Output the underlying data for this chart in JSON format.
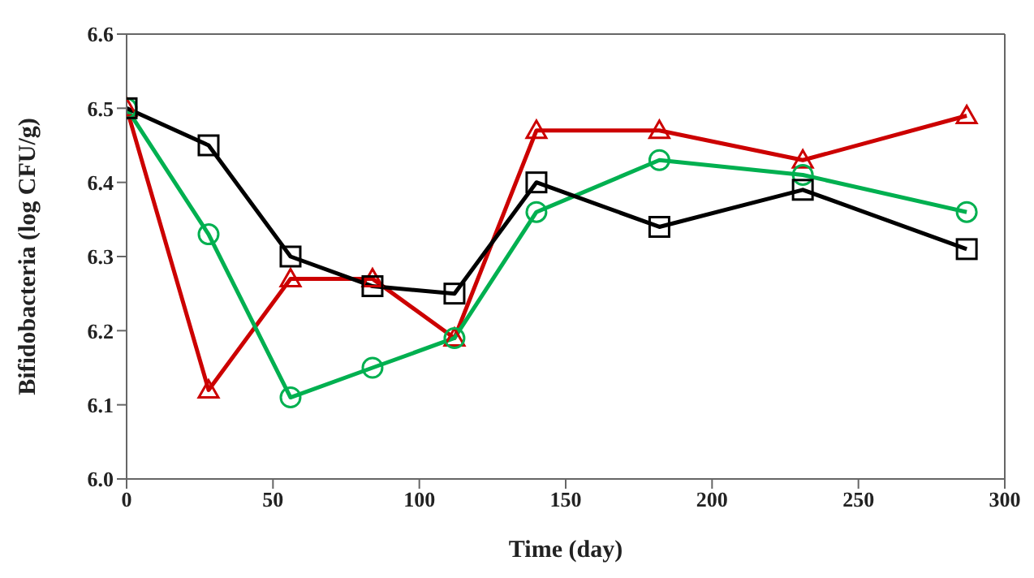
{
  "chart_data": {
    "type": "line",
    "xlabel": "Time (day)",
    "ylabel": "Bifidobacteria (log CFU/g)",
    "x": [
      0,
      28,
      56,
      84,
      112,
      140,
      182,
      231,
      287
    ],
    "series": [
      {
        "color": "#cc0000",
        "marker": "triangle",
        "values": [
          6.5,
          6.12,
          6.27,
          6.27,
          6.19,
          6.47,
          6.47,
          6.43,
          6.49
        ]
      },
      {
        "color": "#00b050",
        "marker": "circle",
        "values": [
          6.5,
          6.33,
          6.11,
          6.15,
          6.19,
          6.36,
          6.43,
          6.41,
          6.36
        ]
      },
      {
        "color": "#000000",
        "marker": "square",
        "values": [
          6.5,
          6.45,
          6.3,
          6.26,
          6.25,
          6.4,
          6.34,
          6.39,
          6.31
        ]
      }
    ],
    "xlim": [
      0,
      300
    ],
    "xticks": [
      0,
      50,
      100,
      150,
      200,
      250,
      300
    ],
    "ylim": [
      6.0,
      6.6
    ],
    "yticks": [
      {
        "value": 6.0,
        "label": "6.0"
      },
      6.1,
      6.2,
      6.3,
      6.4,
      6.5,
      6.6
    ],
    "grid": false,
    "legend": false
  }
}
